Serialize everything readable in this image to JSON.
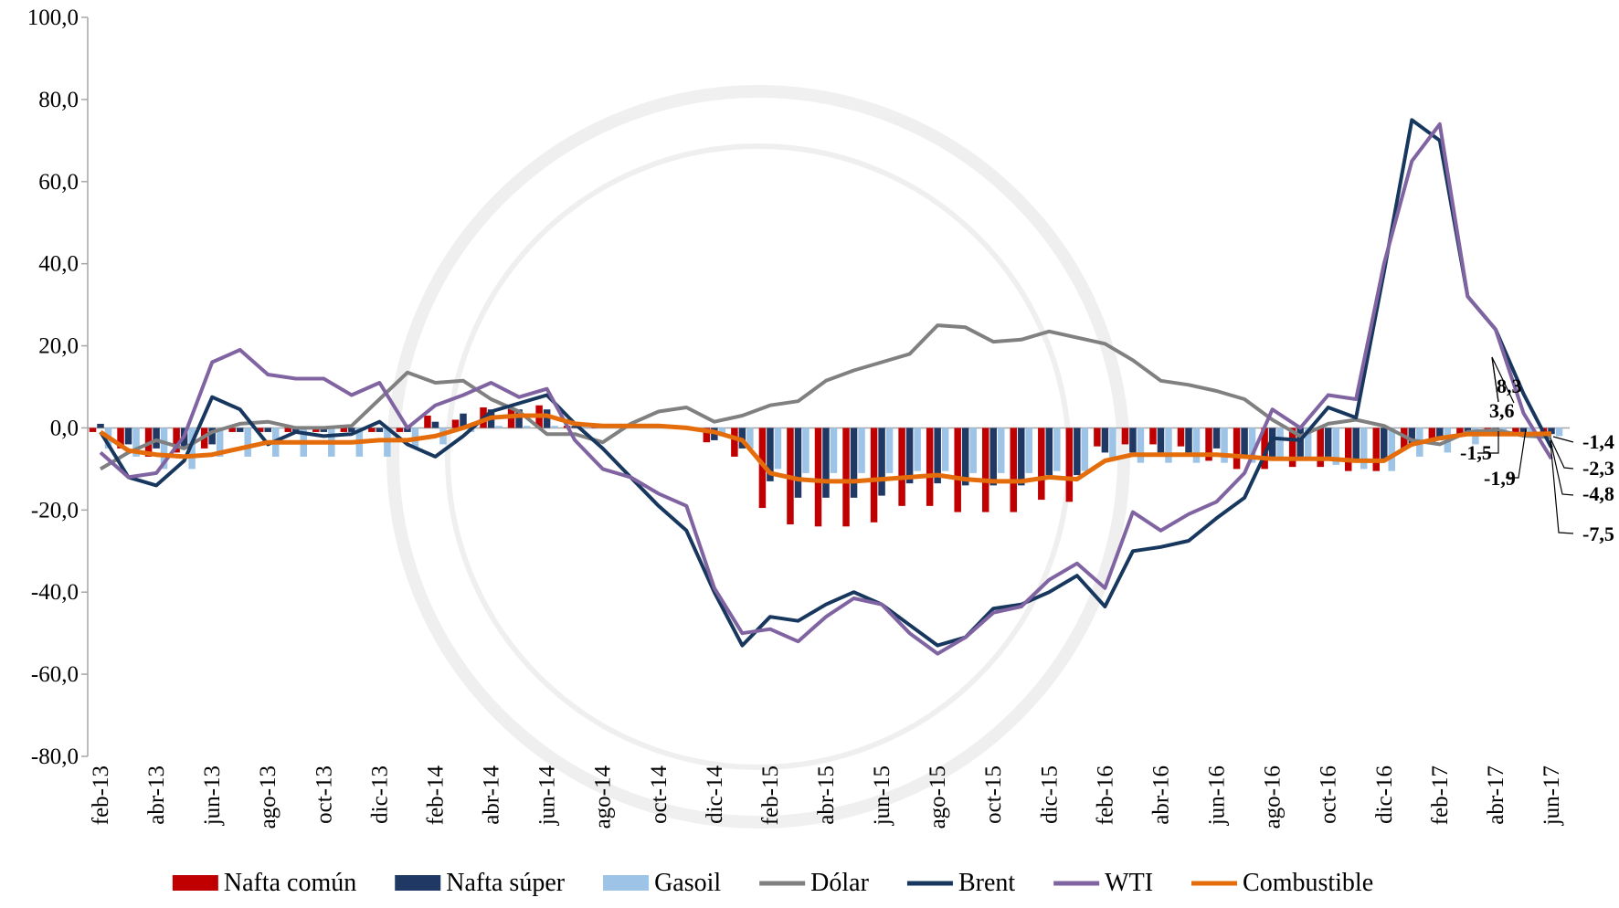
{
  "chart_data": {
    "type": "bar_line",
    "categories": [
      "feb-13",
      null,
      "abr-13",
      null,
      "jun-13",
      null,
      "ago-13",
      null,
      "oct-13",
      null,
      "dic-13",
      null,
      "feb-14",
      null,
      "abr-14",
      null,
      "jun-14",
      null,
      "ago-14",
      null,
      "oct-14",
      null,
      "dic-14",
      null,
      "feb-15",
      null,
      "abr-15",
      null,
      "jun-15",
      null,
      "ago-15",
      null,
      "oct-15",
      null,
      "dic-15",
      null,
      "feb-16",
      null,
      "abr-16",
      null,
      "jun-16",
      null,
      "ago-16",
      null,
      "oct-16",
      null,
      "dic-16",
      null,
      "feb-17",
      null,
      "abr-17",
      null,
      "jun-17"
    ],
    "ylim": [
      -80,
      100
    ],
    "yticks": [
      {
        "value": 100,
        "label": "100,0"
      },
      {
        "value": 80,
        "label": "80,0"
      },
      {
        "value": 60,
        "label": "60,0"
      },
      {
        "value": 40,
        "label": "40,0"
      },
      {
        "value": 20,
        "label": "20,0"
      },
      {
        "value": 0,
        "label": "0,0"
      },
      {
        "value": -20,
        "label": "-20,0"
      },
      {
        "value": -40,
        "label": "-40,0"
      },
      {
        "value": -60,
        "label": "-60,0"
      },
      {
        "value": -80,
        "label": "-80,0"
      }
    ],
    "grid": false,
    "legend": "bottom",
    "series": [
      {
        "name": "Nafta común",
        "type": "bar",
        "color": "#c00000",
        "values": [
          -1,
          -5,
          -7,
          -6,
          -5,
          -1,
          -1,
          -1,
          -1,
          -1,
          -1,
          -1,
          3,
          2,
          5,
          5,
          5.5,
          0.5,
          0.5,
          0.5,
          0.5,
          0,
          -3.5,
          -7,
          -19.5,
          -23.5,
          -24,
          -24,
          -23,
          -19,
          -19,
          -20.5,
          -20.5,
          -20.5,
          -17.5,
          -18,
          -4.5,
          -4,
          -4,
          -4.5,
          -8,
          -10,
          -10,
          -9.5,
          -9.5,
          -10.5,
          -10.5,
          -5,
          -4,
          -2,
          -1.5,
          -1.5,
          -1.5
        ]
      },
      {
        "name": "Nafta súper",
        "type": "bar",
        "color": "#1f3864",
        "values": [
          1,
          -4,
          -5,
          -5,
          -4,
          -1,
          -1,
          -1,
          -1,
          -1,
          -1,
          -1,
          1.5,
          3.5,
          4.5,
          4.5,
          4.5,
          0.5,
          0.5,
          0.5,
          0.5,
          0,
          -3,
          -5,
          -13,
          -17,
          -17,
          -17,
          -16.5,
          -13.5,
          -13.5,
          -14,
          -14,
          -14,
          -11.5,
          -11.5,
          -6,
          -6,
          -6,
          -6,
          -5,
          -7,
          -7,
          -7,
          -7,
          -8,
          -8,
          -4,
          -3,
          -2,
          -1.5,
          -1.5,
          -1.5
        ]
      },
      {
        "name": "Gasoil",
        "type": "bar",
        "color": "#9dc3e6",
        "values": [
          -5,
          -7,
          -10,
          -10,
          -7,
          -7,
          -7,
          -7,
          -7,
          -7,
          -7,
          -5,
          -4,
          -1,
          0.5,
          0.5,
          0.5,
          0.5,
          0.5,
          0.5,
          0.5,
          0,
          -2,
          -5,
          -10,
          -11,
          -11,
          -11,
          -11,
          -10.5,
          -10.5,
          -11,
          -11,
          -11,
          -10.5,
          -10.5,
          -8,
          -8.5,
          -8.5,
          -8.5,
          -8.5,
          -8.5,
          -8,
          -8,
          -9,
          -10,
          -10.5,
          -7,
          -6,
          -4,
          -2,
          -2,
          -2
        ]
      },
      {
        "name": "Dólar",
        "type": "line",
        "color": "#808080",
        "values": [
          -10,
          -6,
          -3,
          -5,
          -1,
          1,
          1.5,
          0,
          0,
          0.5,
          7,
          13.5,
          11,
          11.5,
          7,
          4,
          -1.5,
          -1.5,
          -3.5,
          1,
          4,
          5,
          1.5,
          3,
          5.5,
          6.5,
          11.5,
          14,
          16,
          18,
          25,
          24.5,
          21,
          21.5,
          23.5,
          22,
          20.5,
          16.5,
          11.5,
          10.5,
          9,
          7,
          2,
          -2,
          1,
          2,
          0.5,
          -3,
          -4,
          -1,
          -0.5,
          -1.9,
          -2.3
        ]
      },
      {
        "name": "Brent",
        "type": "line",
        "color": "#17375e",
        "values": [
          -1,
          -12,
          -14,
          -8,
          7.5,
          4.5,
          -4,
          -1,
          -2,
          -1.5,
          1.5,
          -4,
          -7,
          -2,
          4,
          6,
          8,
          1,
          -5,
          -12,
          -19,
          -25,
          -40,
          -53,
          -46,
          -47,
          -43,
          -40,
          -43,
          -48,
          -53,
          -51,
          -44,
          -43,
          -40,
          -36,
          -43.5,
          -30,
          -29,
          -27.5,
          -22,
          -17,
          -2.5,
          -3,
          5,
          2.5,
          38,
          75,
          70,
          32,
          24,
          8.3,
          -4.8
        ]
      },
      {
        "name": "WTI",
        "type": "line",
        "color": "#8064a2",
        "values": [
          -6,
          -12,
          -11,
          -2,
          16,
          19,
          13,
          12,
          12,
          8,
          11,
          0,
          5.5,
          8,
          11,
          7.5,
          9.5,
          -3,
          -10,
          -12,
          -16,
          -19,
          -39,
          -50,
          -49,
          -52,
          -46,
          -41.5,
          -43,
          -50,
          -55,
          -51,
          -45,
          -43.5,
          -37,
          -33,
          -39,
          -20.5,
          -25,
          -21,
          -18,
          -11,
          4.5,
          0,
          8,
          7,
          40,
          65,
          74,
          32,
          24,
          3.6,
          -7.5
        ]
      },
      {
        "name": "Combustible",
        "type": "line",
        "color": "#e46c0a",
        "values": [
          -1,
          -5.5,
          -6.5,
          -7,
          -6.5,
          -5,
          -3.5,
          -3.5,
          -3.5,
          -3.5,
          -3,
          -3,
          -2,
          0,
          2.5,
          3,
          3,
          1,
          0.5,
          0.5,
          0.5,
          0,
          -1,
          -3,
          -11,
          -12.5,
          -13,
          -13,
          -12.5,
          -12,
          -11.5,
          -12.5,
          -13,
          -13,
          -12,
          -12.5,
          -8,
          -6.5,
          -6.5,
          -6.5,
          -6.5,
          -7,
          -7.5,
          -7.5,
          -7.5,
          -8,
          -8,
          -4,
          -2.5,
          -1.5,
          -1.5,
          -1.5,
          -1.4
        ]
      }
    ],
    "annotations": [
      {
        "text": "8,3",
        "color": "#17375e"
      },
      {
        "text": "3,6",
        "color": "#8064a2"
      },
      {
        "text": "-1,4",
        "color": "#e46c0a"
      },
      {
        "text": "-1,5",
        "color": "#e46c0a"
      },
      {
        "text": "-1,9",
        "color": "#808080"
      },
      {
        "text": "-2,3",
        "color": "#808080"
      },
      {
        "text": "-4,8",
        "color": "#17375e"
      },
      {
        "text": "-7,5",
        "color": "#8064a2"
      }
    ]
  }
}
